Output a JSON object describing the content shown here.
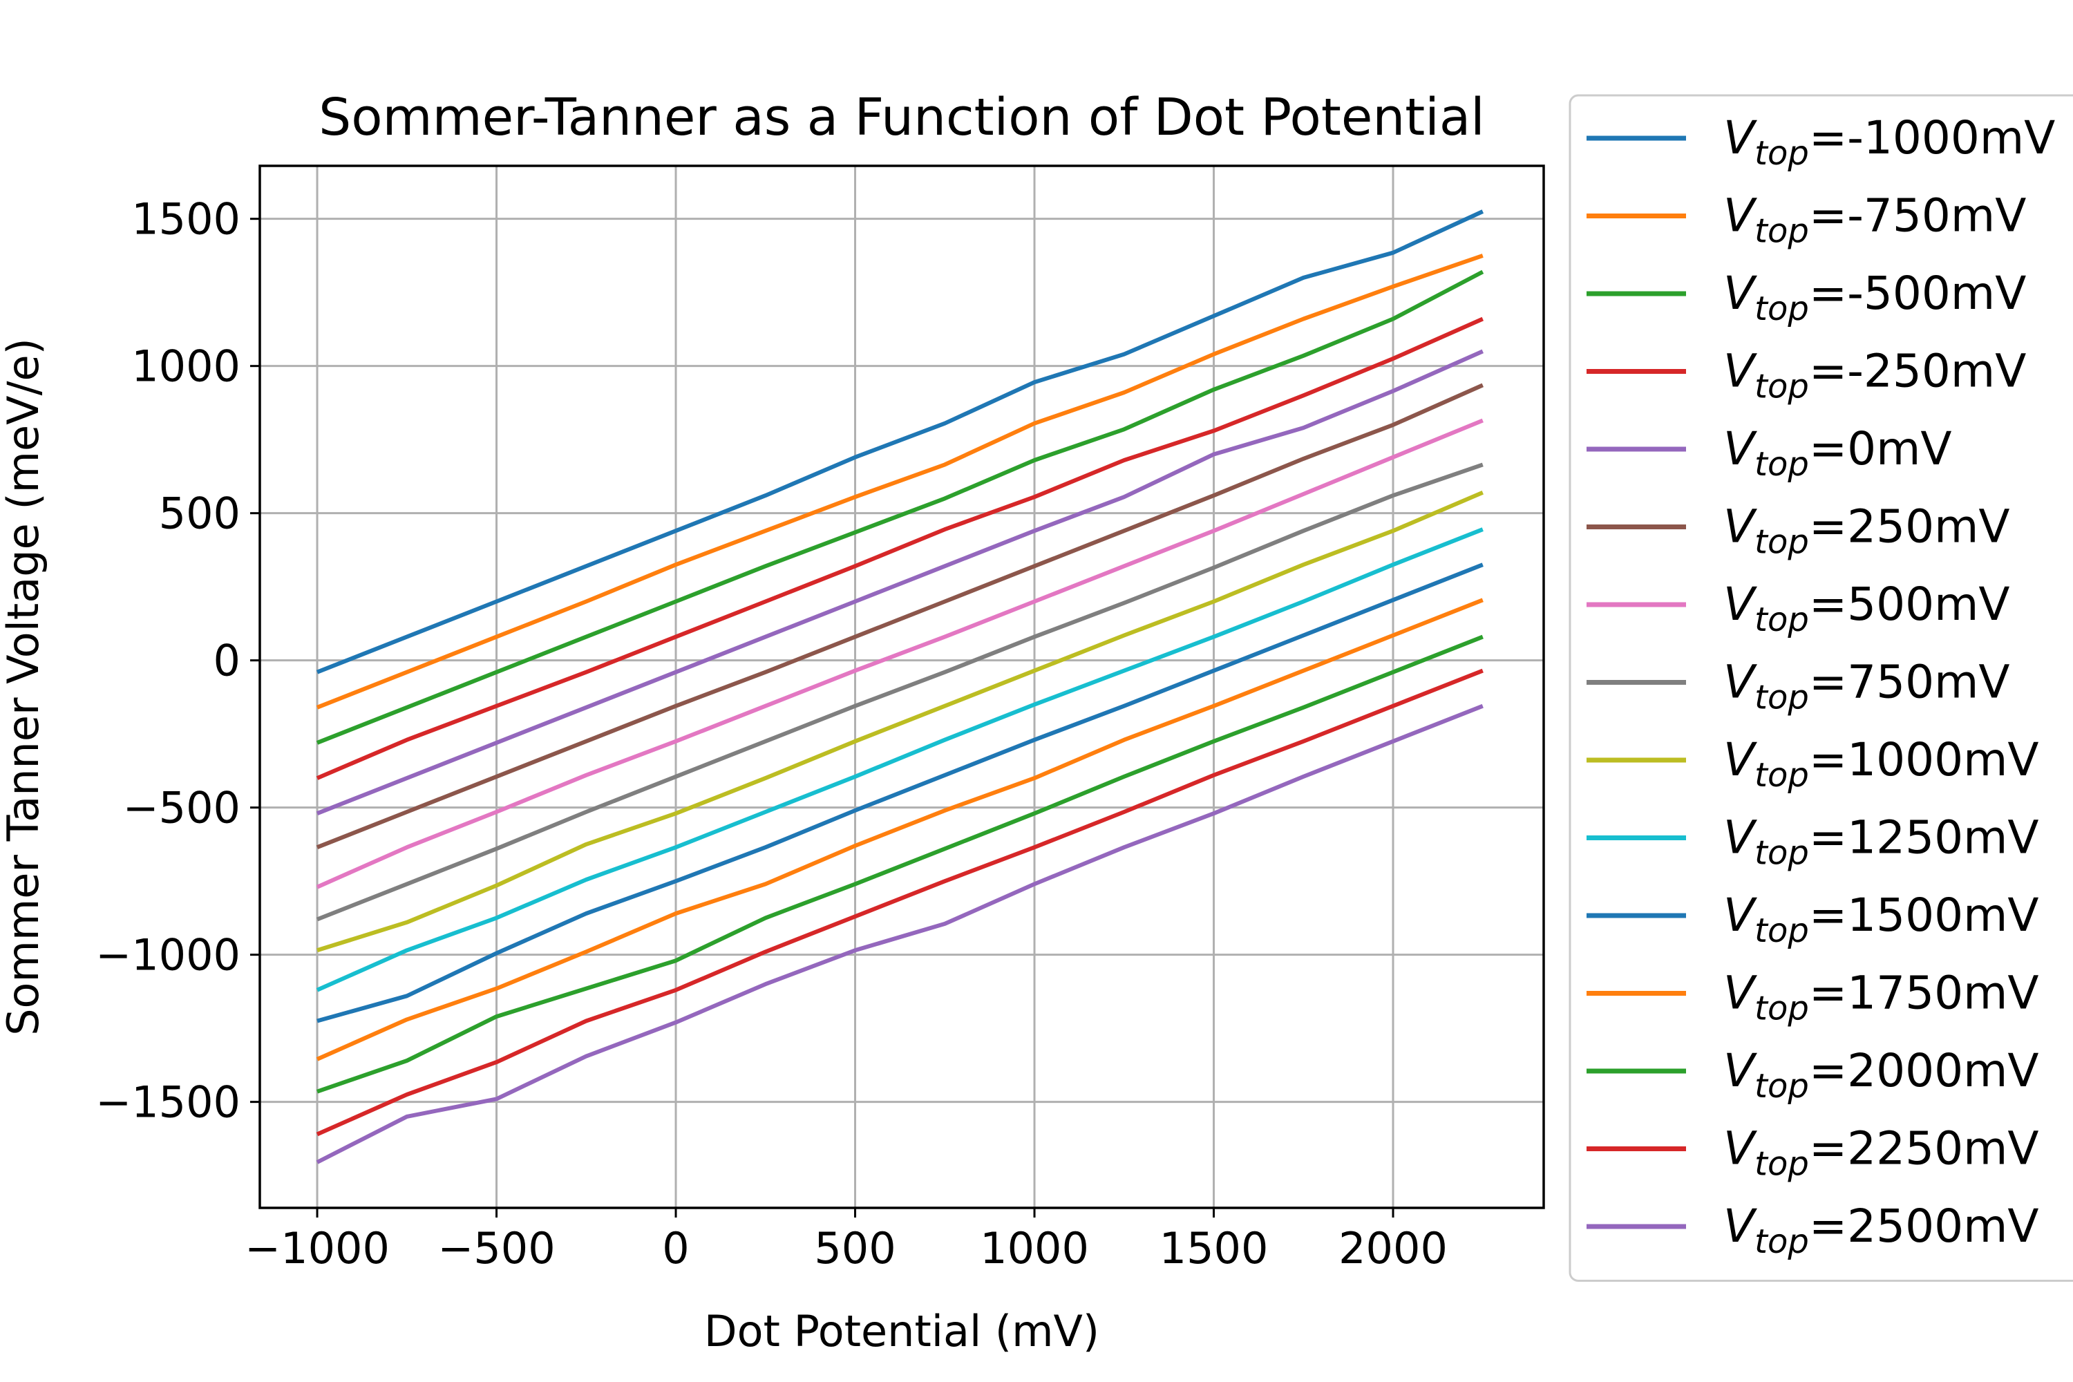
{
  "chart_data": {
    "type": "line",
    "title": "Sommer-Tanner as a Function of Dot Potential",
    "xlabel": "Dot Potential (mV)",
    "ylabel": "Sommer Tanner Voltage (meV/e)",
    "xlim": [
      -1160,
      2420
    ],
    "ylim": [
      -1860,
      1680
    ],
    "grid": true,
    "legend_position": "outside-right",
    "x": [
      -1000,
      -750,
      -500,
      -250,
      0,
      250,
      500,
      750,
      1000,
      1250,
      1500,
      1750,
      2000,
      2250
    ],
    "x_ticks": [
      -1000,
      -500,
      0,
      500,
      1000,
      1500,
      2000
    ],
    "x_tick_labels": [
      "−1000",
      "−500",
      "0",
      "500",
      "1000",
      "1500",
      "2000"
    ],
    "y_ticks": [
      1500,
      1000,
      500,
      0,
      -500,
      -1000,
      -1500
    ],
    "y_tick_labels": [
      "1500",
      "1000",
      "500",
      "0",
      "−500",
      "−1000",
      "−1500"
    ],
    "series": [
      {
        "name": "=-1000mV",
        "color": "#1f77b4",
        "values": [
          -40,
          80,
          200,
          320,
          440,
          560,
          690,
          805,
          945,
          1040,
          1170,
          1300,
          1385,
          1525
        ]
      },
      {
        "name": "=-750mV",
        "color": "#ff7f0e",
        "values": [
          -160,
          -40,
          80,
          200,
          325,
          440,
          555,
          665,
          805,
          910,
          1040,
          1160,
          1270,
          1375
        ]
      },
      {
        "name": "=-500mV",
        "color": "#2ca02c",
        "values": [
          -280,
          -160,
          -40,
          80,
          200,
          320,
          435,
          550,
          680,
          785,
          920,
          1035,
          1160,
          1320
        ]
      },
      {
        "name": "=-250mV",
        "color": "#d62728",
        "values": [
          -400,
          -270,
          -155,
          -40,
          80,
          200,
          320,
          445,
          555,
          680,
          780,
          900,
          1025,
          1160
        ]
      },
      {
        "name": "=0mV",
        "color": "#9467bd",
        "values": [
          -520,
          -400,
          -280,
          -160,
          -40,
          80,
          200,
          320,
          440,
          555,
          700,
          790,
          915,
          1050
        ]
      },
      {
        "name": "=250mV",
        "color": "#8c564b",
        "values": [
          -635,
          -515,
          -395,
          -275,
          -155,
          -40,
          80,
          200,
          320,
          440,
          560,
          685,
          800,
          935
        ]
      },
      {
        "name": "=500mV",
        "color": "#e377c2",
        "values": [
          -770,
          -635,
          -515,
          -390,
          -275,
          -155,
          -35,
          80,
          200,
          320,
          440,
          565,
          690,
          815
        ]
      },
      {
        "name": "=750mV",
        "color": "#7f7f7f",
        "values": [
          -880,
          -760,
          -640,
          -515,
          -395,
          -275,
          -155,
          -40,
          80,
          195,
          315,
          440,
          560,
          665
        ]
      },
      {
        "name": "=1000mV",
        "color": "#bcbd22",
        "values": [
          -985,
          -890,
          -765,
          -625,
          -520,
          -400,
          -275,
          -155,
          -35,
          85,
          200,
          325,
          440,
          570
        ]
      },
      {
        "name": "=1250mV",
        "color": "#17becf",
        "values": [
          -1120,
          -985,
          -875,
          -745,
          -635,
          -515,
          -395,
          -270,
          -150,
          -35,
          80,
          200,
          325,
          445
        ]
      },
      {
        "name": "=1500mV",
        "color": "#1f77b4",
        "values": [
          -1225,
          -1140,
          -995,
          -860,
          -750,
          -635,
          -510,
          -390,
          -270,
          -155,
          -35,
          85,
          205,
          325
        ]
      },
      {
        "name": "=1750mV",
        "color": "#ff7f0e",
        "values": [
          -1355,
          -1220,
          -1115,
          -990,
          -860,
          -760,
          -630,
          -510,
          -400,
          -270,
          -155,
          -35,
          85,
          205
        ]
      },
      {
        "name": "=2000mV",
        "color": "#2ca02c",
        "values": [
          -1465,
          -1360,
          -1210,
          -1115,
          -1020,
          -875,
          -760,
          -640,
          -520,
          -395,
          -275,
          -160,
          -40,
          80
        ]
      },
      {
        "name": "=2250mV",
        "color": "#d62728",
        "values": [
          -1610,
          -1475,
          -1365,
          -1225,
          -1120,
          -990,
          -870,
          -750,
          -635,
          -515,
          -390,
          -275,
          -155,
          -35
        ]
      },
      {
        "name": "=2500mV",
        "color": "#9467bd",
        "values": [
          -1705,
          -1550,
          -1490,
          -1345,
          -1230,
          -1100,
          -985,
          -895,
          -760,
          -635,
          -520,
          -395,
          -275,
          -155
        ]
      }
    ]
  }
}
